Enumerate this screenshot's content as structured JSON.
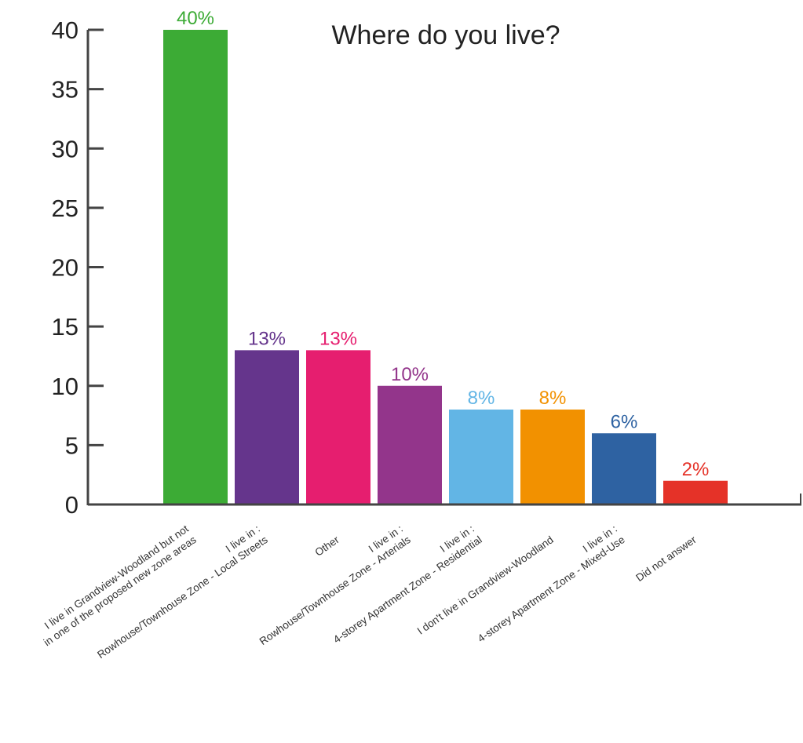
{
  "chart_data": {
    "type": "bar",
    "title": "Where do you live?",
    "xlabel": "",
    "ylabel": "",
    "ylim": [
      0,
      40
    ],
    "yticks": [
      "0",
      "5",
      "10",
      "15",
      "20",
      "25",
      "30",
      "35",
      "40"
    ],
    "categories": [
      [
        "I live in Grandview-Woodland but not",
        "in one of the proposed new zone areas"
      ],
      [
        "I live in :",
        "Rowhouse/Townhouse Zone - Local Streets"
      ],
      [
        "Other"
      ],
      [
        "I live in :",
        "Rowhouse/Townhouse Zone - Arterials"
      ],
      [
        "I live in :",
        "4-storey Apartment Zone - Residential"
      ],
      [
        "I don't live in Grandview-Woodland"
      ],
      [
        "I live in :",
        "4-storey Apartment Zone - Mixed-Use"
      ],
      [
        "Did not answer"
      ]
    ],
    "values": [
      40,
      13,
      13,
      10,
      8,
      8,
      6,
      2
    ],
    "data_labels": [
      "40%",
      "13%",
      "13%",
      "10%",
      "8%",
      "8%",
      "6%",
      "2%"
    ],
    "colors": [
      "#3cab35",
      "#65358c",
      "#e61e6f",
      "#93358b",
      "#62b5e5",
      "#f29100",
      "#2e62a2",
      "#e53228"
    ],
    "label_colors": [
      "#3cab35",
      "#65358c",
      "#e61e6f",
      "#93358b",
      "#62b5e5",
      "#f29100",
      "#2e62a2",
      "#e53228"
    ],
    "grid": false,
    "legend": "none",
    "axis_color": "#444444"
  }
}
